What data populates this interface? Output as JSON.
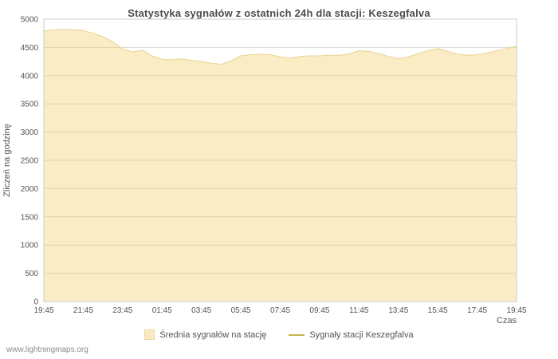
{
  "page": {
    "watermark": "www.lightningmaps.org"
  },
  "colors": {
    "area_fill": "rgba(237,194,64,0.30)",
    "area_stroke": "#e9d392",
    "station_line": "#c7b646",
    "legend_area_swatch_bg": "#f8ebc4",
    "legend_area_swatch_border": "#ecd89a",
    "grid_line": "#d9d9d9",
    "plot_border": "#cccccc",
    "plot_background": "#ffffff"
  },
  "chart_data": {
    "type": "area",
    "title": "Statystyka sygnałów z ostatnich 24h dla stacji: Keszegfalva",
    "xlabel": "Czas",
    "ylabel": "Zliczeń na godzinę",
    "ylim": [
      0,
      5000
    ],
    "ytick_step": 500,
    "x_tick_labels": [
      "19:45",
      "21:45",
      "23:45",
      "01:45",
      "03:45",
      "05:45",
      "07:45",
      "09:45",
      "11:45",
      "13:45",
      "15:45",
      "17:45",
      "19:45"
    ],
    "x_step_minutes": 30,
    "grid": {
      "horizontal": true,
      "vertical": false
    },
    "legend_position": "bottom-center",
    "series": [
      {
        "name": "Średnia sygnałów na stację",
        "type": "area",
        "values": [
          4790,
          4810,
          4820,
          4810,
          4800,
          4750,
          4690,
          4600,
          4470,
          4420,
          4450,
          4350,
          4290,
          4280,
          4300,
          4270,
          4250,
          4220,
          4200,
          4260,
          4350,
          4370,
          4380,
          4370,
          4330,
          4310,
          4340,
          4350,
          4350,
          4360,
          4360,
          4380,
          4440,
          4430,
          4390,
          4340,
          4300,
          4330,
          4390,
          4440,
          4480,
          4430,
          4380,
          4360,
          4370,
          4400,
          4440,
          4480,
          4520
        ]
      },
      {
        "name": "Sygnały stacji Keszegfalva",
        "type": "line",
        "values": []
      }
    ]
  }
}
